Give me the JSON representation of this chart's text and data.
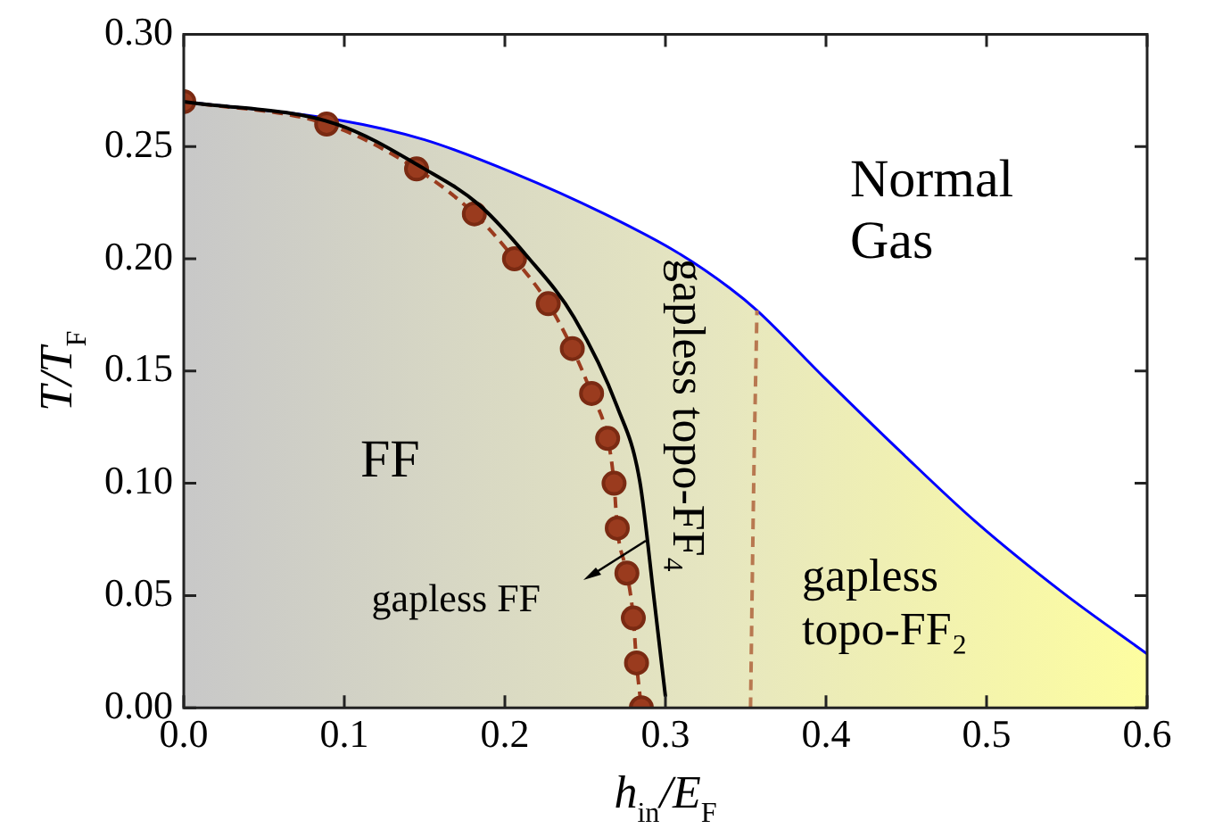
{
  "chart_data": {
    "type": "line",
    "xlabel": "h$_{in}$/E$_{F}$",
    "ylabel": "T/T$_{F}$",
    "xlim": [
      0,
      0.6
    ],
    "ylim": [
      0,
      0.3
    ],
    "xticks": [
      {
        "value": 0,
        "label": "0.0"
      },
      {
        "value": 0.1,
        "label": "0.1"
      },
      {
        "value": 0.2,
        "label": "0.2"
      },
      {
        "value": 0.3,
        "label": "0.3"
      },
      {
        "value": 0.4,
        "label": "0.4"
      },
      {
        "value": 0.5,
        "label": "0.5"
      },
      {
        "value": 0.6,
        "label": "0.6"
      }
    ],
    "yticks": [
      {
        "value": 0,
        "label": "0.00"
      },
      {
        "value": 0.05,
        "label": "0.05"
      },
      {
        "value": 0.1,
        "label": "0.10"
      },
      {
        "value": 0.15,
        "label": "0.15"
      },
      {
        "value": 0.2,
        "label": "0.20"
      },
      {
        "value": 0.25,
        "label": "0.25"
      },
      {
        "value": 0.3,
        "label": "0.30"
      }
    ],
    "grid": false,
    "legend": false,
    "series": [
      {
        "type": "area",
        "color": "#0000ff",
        "x": [
          0,
          0.095,
          0.15,
          0.206,
          0.262,
          0.307,
          0.34,
          0.357,
          0.399,
          0.448,
          0.493,
          0.548,
          0.6
        ],
        "values": [
          0.27,
          0.262,
          0.253,
          0.238,
          0.22,
          0.203,
          0.187,
          0.177,
          0.147,
          0.113,
          0.083,
          0.051,
          0.024
        ]
      },
      {
        "color": "#000000",
        "line_style": "solid",
        "marker": "none",
        "x": [
          0,
          0.095,
          0.15,
          0.184,
          0.214,
          0.243,
          0.27,
          0.284,
          0.293,
          0.3
        ],
        "values": [
          0.27,
          0.26,
          0.24,
          0.224,
          0.201,
          0.174,
          0.134,
          0.101,
          0.048,
          0.005
        ]
      },
      {
        "color": "#9a3b1e",
        "line_style": "dashed",
        "marker": "circle",
        "x": [
          0,
          0.089,
          0.145,
          0.181,
          0.206,
          0.227,
          0.242,
          0.254,
          0.264,
          0.268,
          0.27,
          0.276,
          0.28,
          0.282,
          0.285
        ],
        "values": [
          0.27,
          0.26,
          0.24,
          0.22,
          0.2,
          0.18,
          0.16,
          0.14,
          0.12,
          0.1,
          0.08,
          0.06,
          0.04,
          0.02,
          0
        ]
      },
      {
        "color": "#b87850",
        "line_style": "dashed",
        "marker": "none",
        "x": [
          0.353,
          0.355,
          0.357
        ],
        "values": [
          0,
          0.101,
          0.177
        ]
      }
    ],
    "annotations": [
      "Normal\nGas",
      "FF",
      "gapless FF",
      "gapless topo-FF₄",
      "gapless\ntopo-FF₂"
    ]
  }
}
